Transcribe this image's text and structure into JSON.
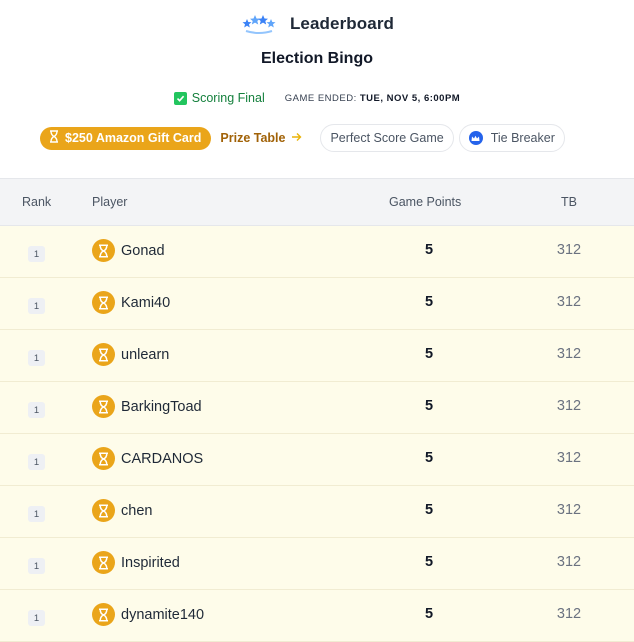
{
  "header": {
    "title": "Leaderboard",
    "game_name": "Election Bingo",
    "status": "Scoring Final",
    "ended_label": "GAME ENDED:",
    "ended_value": "TUE, NOV 5, 6:00PM"
  },
  "chips": {
    "prize": "$250 Amazon Gift Card",
    "prize_table": "Prize Table",
    "perfect_score": "Perfect Score Game",
    "tie_breaker": "Tie Breaker"
  },
  "table": {
    "columns": {
      "rank": "Rank",
      "player": "Player",
      "points": "Game Points",
      "tb": "TB"
    },
    "rows": [
      {
        "rank": "1",
        "player": "Gonad",
        "points": "5",
        "tb": "312"
      },
      {
        "rank": "1",
        "player": "Kami40",
        "points": "5",
        "tb": "312"
      },
      {
        "rank": "1",
        "player": "unlearn",
        "points": "5",
        "tb": "312"
      },
      {
        "rank": "1",
        "player": "BarkingToad",
        "points": "5",
        "tb": "312"
      },
      {
        "rank": "1",
        "player": "CARDANOS",
        "points": "5",
        "tb": "312"
      },
      {
        "rank": "1",
        "player": "chen",
        "points": "5",
        "tb": "312"
      },
      {
        "rank": "1",
        "player": "Inspirited",
        "points": "5",
        "tb": "312"
      },
      {
        "rank": "1",
        "player": "dynamite140",
        "points": "5",
        "tb": "312"
      }
    ]
  },
  "colors": {
    "accent_gold": "#eaa51a",
    "row_highlight": "#fefcea",
    "success_green": "#15803d",
    "tie_blue": "#2563eb"
  },
  "icons": [
    "stars-logo-icon",
    "check-icon",
    "hourglass-icon",
    "arrow-right-icon",
    "crown-icon",
    "trophy-icon"
  ]
}
